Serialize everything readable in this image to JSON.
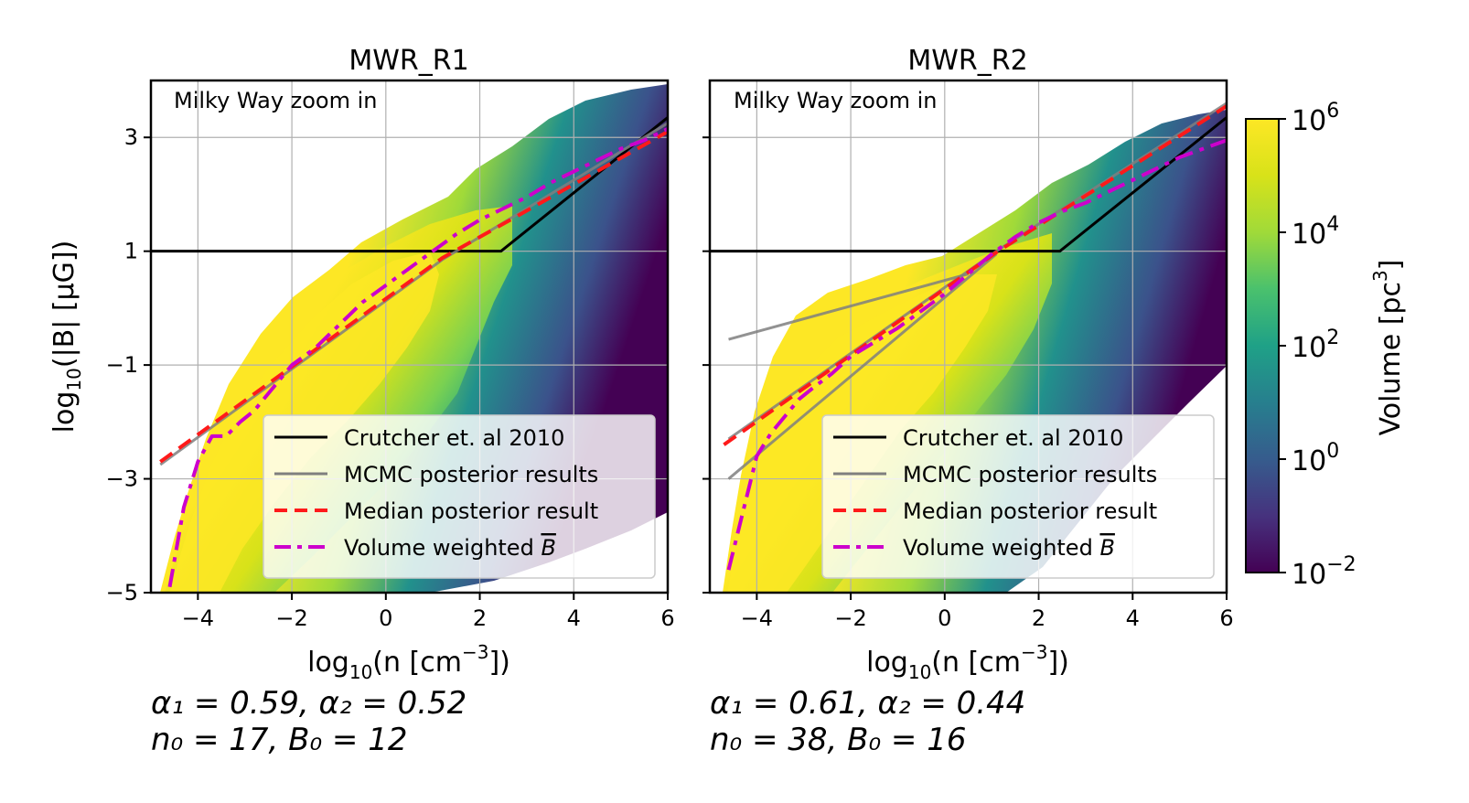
{
  "chart_data": [
    {
      "type": "heatmap",
      "title": "MWR_R1",
      "annotation": "Milky Way zoom in",
      "xlabel_prefix": "log",
      "xlabel_sub": "10",
      "xlabel_body": "(n [cm",
      "xlabel_sup": "−3",
      "xlabel_tail": "])",
      "ylabel_prefix": "log",
      "ylabel_sub": "10",
      "ylabel_body": "(|B| [μG])",
      "xlim": [
        -5,
        6
      ],
      "ylim": [
        -5,
        4
      ],
      "xticks": [
        -4,
        -2,
        0,
        2,
        4,
        6
      ],
      "xtick_labels": [
        "−4",
        "−2",
        "0",
        "2",
        "4",
        "6"
      ],
      "yticks": [
        -5,
        -3,
        -1,
        1,
        3
      ],
      "ytick_labels": [
        "−5",
        "−3",
        "−1",
        "1",
        "3"
      ],
      "grid": true,
      "series": [
        {
          "name": "Crutcher et. al 2010",
          "x": [
            -5,
            2.45,
            6
          ],
          "y": [
            1,
            1,
            3.35
          ]
        },
        {
          "name": "MCMC posterior results",
          "x": [
            -4.8,
            1.2,
            6
          ],
          "y": [
            -2.75,
            0.85,
            3.25
          ]
        },
        {
          "name": "Median posterior result",
          "x": [
            -4.8,
            1.2,
            6
          ],
          "y": [
            -2.7,
            0.88,
            3.1
          ]
        },
        {
          "name": "Volume weighted B̄",
          "x": [
            -4.6,
            -4.3,
            -4.0,
            -3.7,
            -3.4,
            -3.1,
            -2.8,
            -2.4,
            -2.0,
            -1.5,
            -1.0,
            -0.5,
            0,
            0.5,
            1.0,
            1.5,
            2.0,
            2.5,
            3.0,
            3.5,
            4.0,
            4.5,
            5.0,
            5.5,
            6.0
          ],
          "y": [
            -4.9,
            -3.5,
            -2.7,
            -2.25,
            -2.25,
            -2.0,
            -1.8,
            -1.4,
            -1.0,
            -0.7,
            -0.3,
            0.1,
            0.4,
            0.7,
            1.0,
            1.3,
            1.55,
            1.75,
            1.95,
            2.2,
            2.4,
            2.6,
            2.8,
            2.95,
            3.15
          ]
        }
      ],
      "params_line1": "α₁ = 0.59, α₂ = 0.52",
      "params_line2": "n₀ = 17, B₀ = 12"
    },
    {
      "type": "heatmap",
      "title": "MWR_R2",
      "annotation": "Milky Way zoom in",
      "xlabel_prefix": "log",
      "xlabel_sub": "10",
      "xlabel_body": "(n [cm",
      "xlabel_sup": "−3",
      "xlabel_tail": "])",
      "xlim": [
        -5,
        6
      ],
      "ylim": [
        -5,
        4
      ],
      "xticks": [
        -4,
        -2,
        0,
        2,
        4,
        6
      ],
      "xtick_labels": [
        "−4",
        "−2",
        "0",
        "2",
        "4",
        "6"
      ],
      "yticks": [
        -5,
        -3,
        -1,
        1,
        3
      ],
      "grid": true,
      "series": [
        {
          "name": "Crutcher et. al 2010",
          "x": [
            -5,
            2.45,
            6
          ],
          "y": [
            1,
            1,
            3.35
          ]
        },
        {
          "name": "MCMC posterior results",
          "x": [
            -4.6,
            1.1,
            6
          ],
          "y": [
            -2.3,
            1.0,
            3.6
          ]
        },
        {
          "name": "MCMC posterior results B",
          "x": [
            -4.6,
            1.1
          ],
          "y": [
            -3.0,
            0.95
          ]
        },
        {
          "name": "MCMC posterior results C",
          "x": [
            -4.6,
            0.5
          ],
          "y": [
            -0.55,
            0.6
          ]
        },
        {
          "name": "Median posterior result",
          "x": [
            -4.7,
            1.1,
            6
          ],
          "y": [
            -2.4,
            0.98,
            3.55
          ]
        },
        {
          "name": "Volume weighted B̄",
          "x": [
            -4.6,
            -4.3,
            -4.0,
            -3.7,
            -3.4,
            -3.1,
            -2.8,
            -2.4,
            -2.0,
            -1.5,
            -1.0,
            -0.5,
            0,
            0.5,
            1.0,
            1.5,
            2.0,
            2.5,
            3.0,
            3.5,
            4.0,
            4.5,
            5.0,
            5.5,
            6.0
          ],
          "y": [
            -4.6,
            -3.6,
            -2.6,
            -2.2,
            -1.9,
            -1.6,
            -1.4,
            -1.15,
            -0.85,
            -0.6,
            -0.35,
            -0.05,
            0.25,
            0.6,
            0.95,
            1.25,
            1.5,
            1.7,
            1.85,
            2.05,
            2.25,
            2.45,
            2.65,
            2.8,
            2.95
          ]
        }
      ],
      "params_line1": "α₁ = 0.61, α₂ = 0.44",
      "params_line2": "n₀ = 38, B₀ = 16"
    }
  ],
  "legend": {
    "placement": "lower-right",
    "entries": [
      {
        "label": "Crutcher et. al 2010",
        "color": "#000000",
        "style": "solid"
      },
      {
        "label": "MCMC posterior results",
        "color": "#7f7f7f",
        "style": "solid"
      },
      {
        "label": "Median posterior result",
        "color": "#ff1a1a",
        "style": "dashed"
      },
      {
        "label": "Volume weighted ",
        "color": "#cc00cc",
        "style": "dashdot"
      }
    ],
    "b_symbol": "B"
  },
  "colorbar": {
    "label": "Volume [pc",
    "label_sup": "3",
    "label_tail": "]",
    "tick_base": "10",
    "tick_exponents": [
      6,
      4,
      2,
      0,
      -2
    ],
    "tick_exponent_labels": [
      "6",
      "4",
      "2",
      "0",
      "−2"
    ],
    "log_range": [
      -2,
      6
    ],
    "cmap": "viridis"
  },
  "colors": {
    "crutcher": "#000000",
    "mcmc": "#7f7f7f",
    "median": "#ff1a1a",
    "volume": "#cc00cc",
    "grid": "#b0b0b0"
  }
}
